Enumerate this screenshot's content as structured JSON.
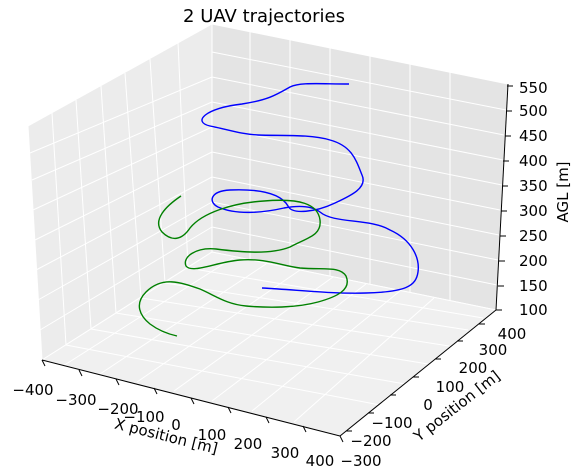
{
  "chart_data": {
    "type": "line",
    "projection": "3d",
    "title": "2 UAV trajectories",
    "xlabel": "X position [m]",
    "ylabel": "Y position [m]",
    "zlabel": "AGL [m]",
    "xlim": [
      -400,
      400
    ],
    "ylim": [
      -300,
      400
    ],
    "zlim": [
      100,
      550
    ],
    "xticks": [
      "−400",
      "−300",
      "−200",
      "−100",
      "0",
      "100",
      "200",
      "300",
      "400"
    ],
    "yticks": [
      "−300",
      "−200",
      "−100",
      "0",
      "100",
      "200",
      "300",
      "400"
    ],
    "zticks": [
      "100",
      "150",
      "200",
      "250",
      "300",
      "350",
      "400",
      "450",
      "500",
      "550"
    ],
    "grid": true,
    "series": [
      {
        "color": "#0000ff",
        "z": [
          520,
          490,
          460,
          420,
          380,
          330,
          300,
          270,
          240,
          200,
          170,
          150,
          130,
          140,
          170
        ]
      },
      {
        "color": "#008000",
        "z": [
          300,
          260,
          240,
          210,
          180,
          150,
          130,
          120,
          110
        ]
      }
    ],
    "colors": {
      "pane_back": "#e6e6e6",
      "pane_left": "#ececec",
      "pane_floor": "#f0f0f0"
    }
  }
}
